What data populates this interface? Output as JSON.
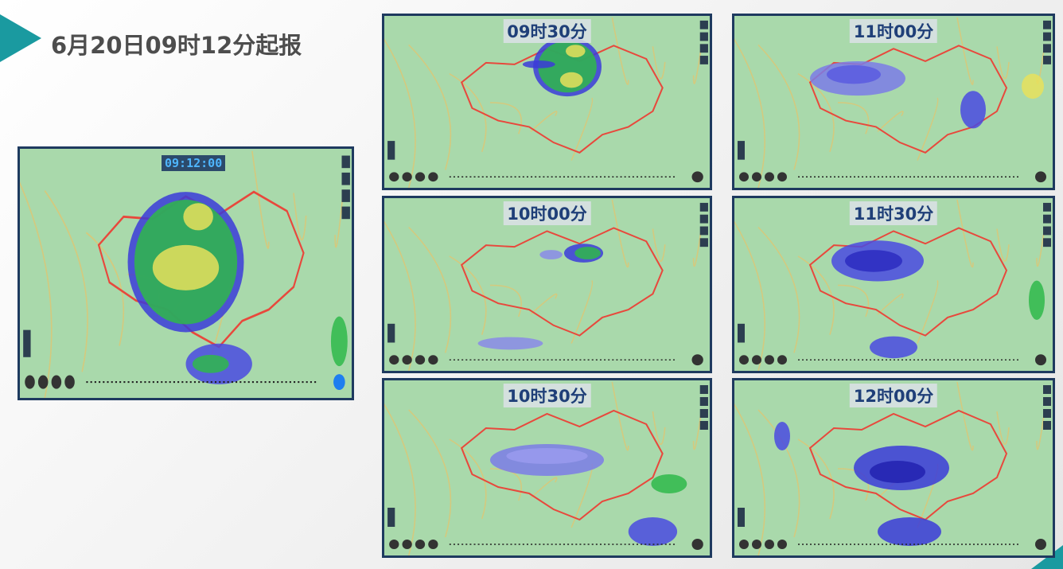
{
  "header": {
    "title": "6月20日09时12分起报"
  },
  "main_map": {
    "time": "09:12:00"
  },
  "panels": [
    {
      "label": "09时30分"
    },
    {
      "label": "10时00分"
    },
    {
      "label": "10时30分"
    },
    {
      "label": "11时00分"
    },
    {
      "label": "11时30分"
    },
    {
      "label": "12时00分"
    }
  ]
}
